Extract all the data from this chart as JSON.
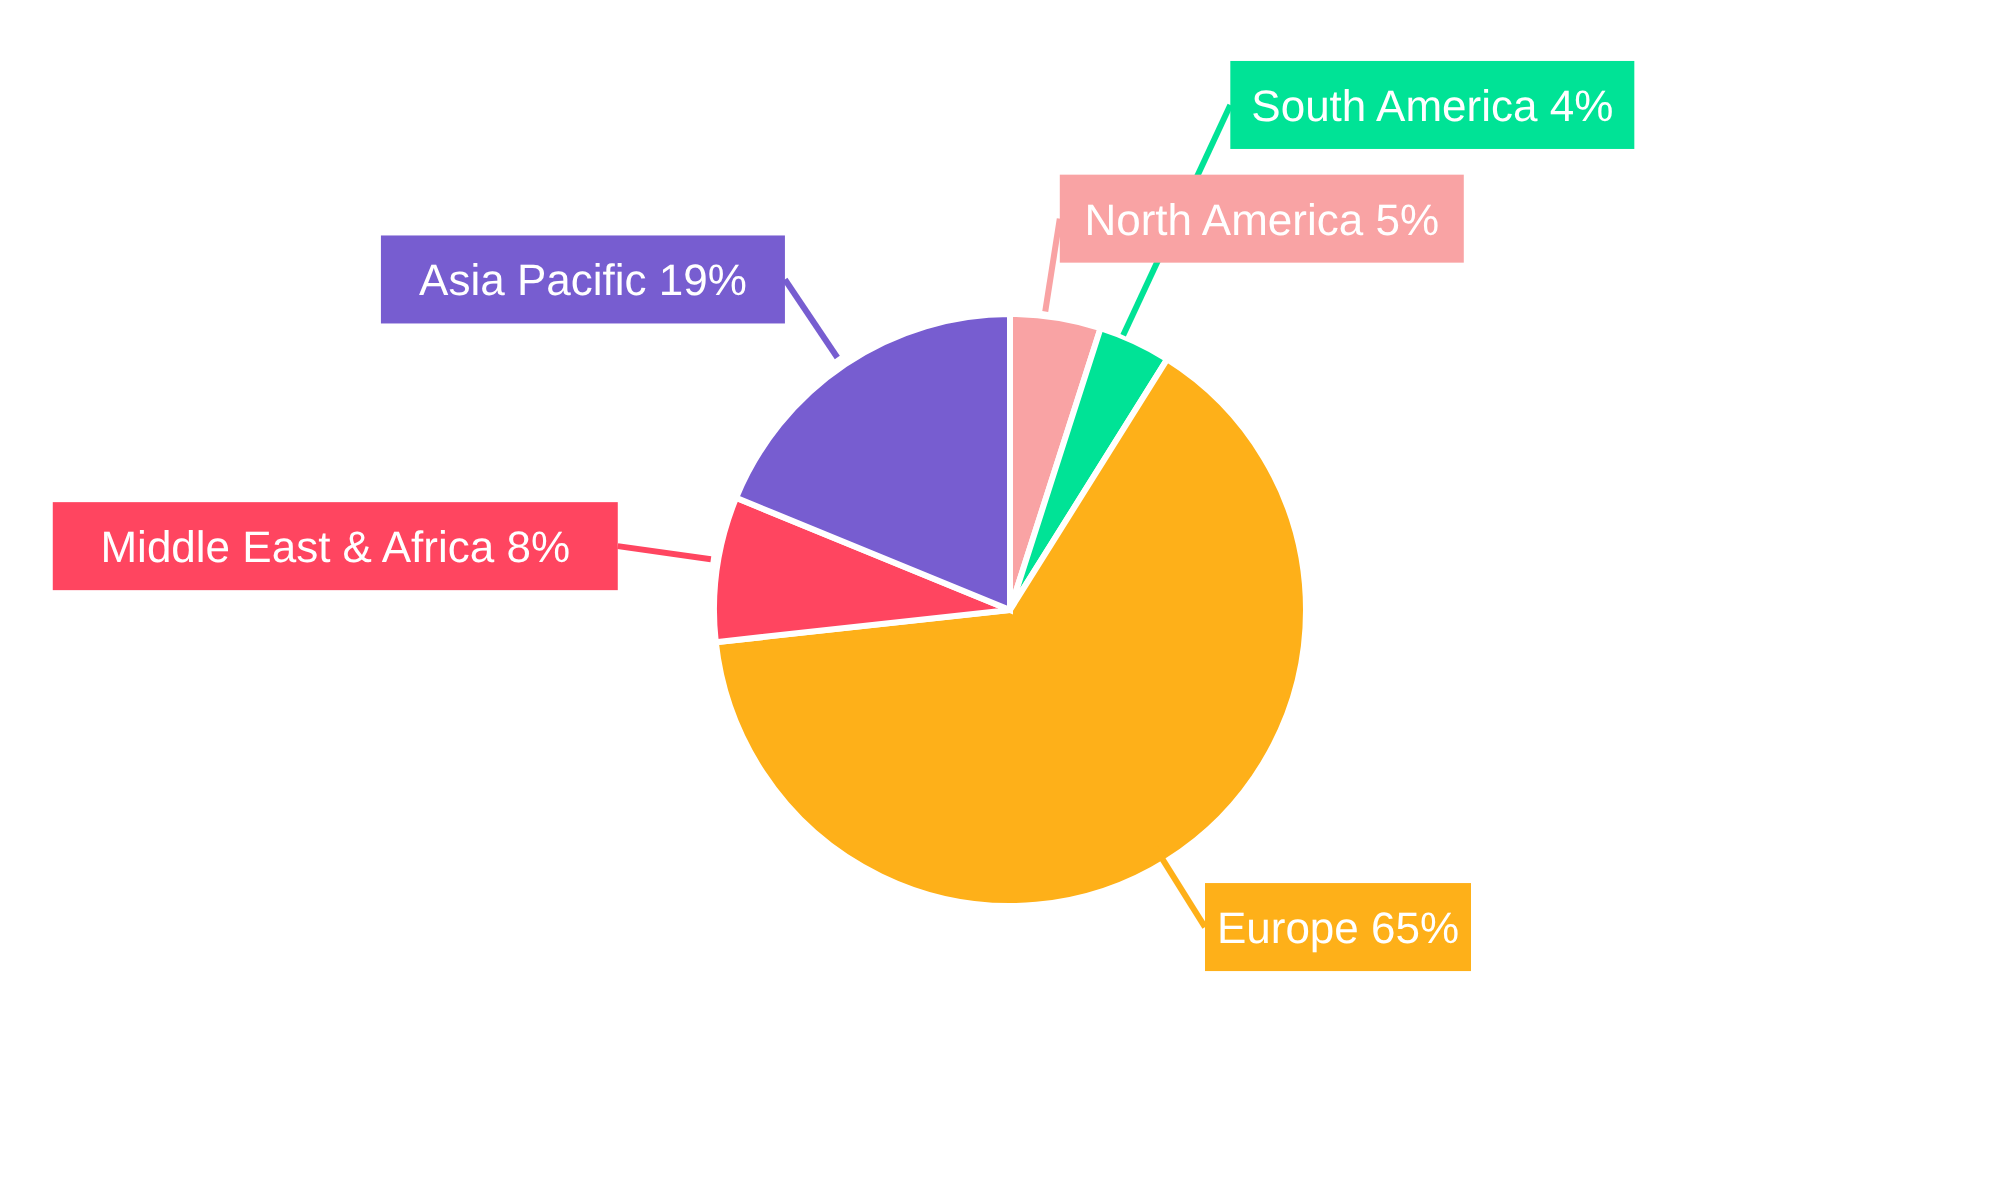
{
  "chart_data": {
    "type": "pie",
    "categories": [
      "North America",
      "South America",
      "Europe",
      "Middle East & Africa",
      "Asia Pacific"
    ],
    "values": [
      5,
      4,
      65,
      8,
      19
    ],
    "value_labels": [
      "5%",
      "4%",
      "65%",
      "8%",
      "19%"
    ],
    "colors": [
      "#f9a3a4",
      "#00e396",
      "#feb019",
      "#ff4560",
      "#775dd0"
    ],
    "legend": false
  }
}
